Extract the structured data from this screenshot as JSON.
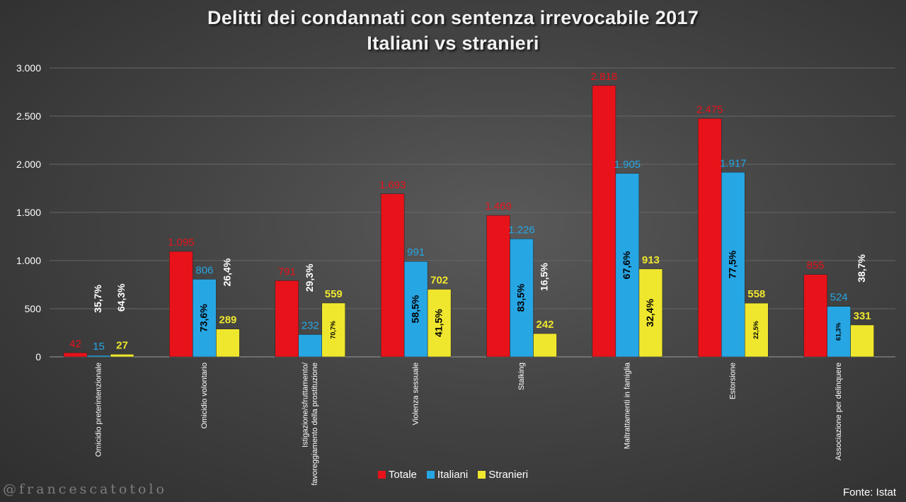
{
  "title_lines": [
    "Delitti dei condannati con sentenza irrevocabile 2017",
    "Italiani vs stranieri"
  ],
  "watermark": "@francescatotolo",
  "source": "Fonte: Istat",
  "colors": {
    "Totale": "#e8121a",
    "Italiani": "#27a6e4",
    "Stranieri": "#efe72e"
  },
  "chart_data": {
    "type": "bar",
    "title": "Delitti dei condannati con sentenza irrevocabile 2017 Italiani vs stranieri",
    "categories": [
      "Omicidio preterintenzionale",
      "Omicidio volontario",
      "Istigazione/sfruttamento/ favoreggiamento della prostituzione",
      "Violenza sessuale",
      "Stalking",
      "Maltrattamenti in famiglia",
      "Estorsione",
      "Associazione per delinquere"
    ],
    "series": [
      {
        "name": "Totale",
        "values": [
          42,
          1095,
          791,
          1693,
          1469,
          2818,
          2475,
          855
        ],
        "labels": [
          "42",
          "1.095",
          "791",
          "1.693",
          "1.469",
          "2.818",
          "2.475",
          "855"
        ]
      },
      {
        "name": "Italiani",
        "values": [
          15,
          806,
          232,
          991,
          1226,
          1905,
          1917,
          524
        ],
        "labels": [
          "15",
          "806",
          "232",
          "991",
          "1.226",
          "1.905",
          "1.917",
          "524"
        ],
        "pct_labels": [
          "35,7%",
          "73,6%",
          "29,3%",
          "58,5%",
          "83,5%",
          "67,6%",
          "77,5%",
          "61,3%"
        ]
      },
      {
        "name": "Stranieri",
        "values": [
          27,
          289,
          559,
          702,
          242,
          913,
          558,
          331
        ],
        "labels": [
          "27",
          "289",
          "559",
          "702",
          "242",
          "913",
          "558",
          "331"
        ],
        "pct_labels": [
          "64,3%",
          "26,4%",
          "70,7%",
          "41,5%",
          "16,5%",
          "32,4%",
          "22,5%",
          "38,7%"
        ]
      }
    ],
    "yticks": [
      0,
      500,
      1000,
      1500,
      2000,
      2500,
      3000
    ],
    "ytick_labels": [
      "0",
      "500",
      "1.000",
      "1.500",
      "2.000",
      "2.500",
      "3.000"
    ],
    "ylim": [
      0,
      3000
    ],
    "grid": true,
    "legend_position": "bottom"
  }
}
